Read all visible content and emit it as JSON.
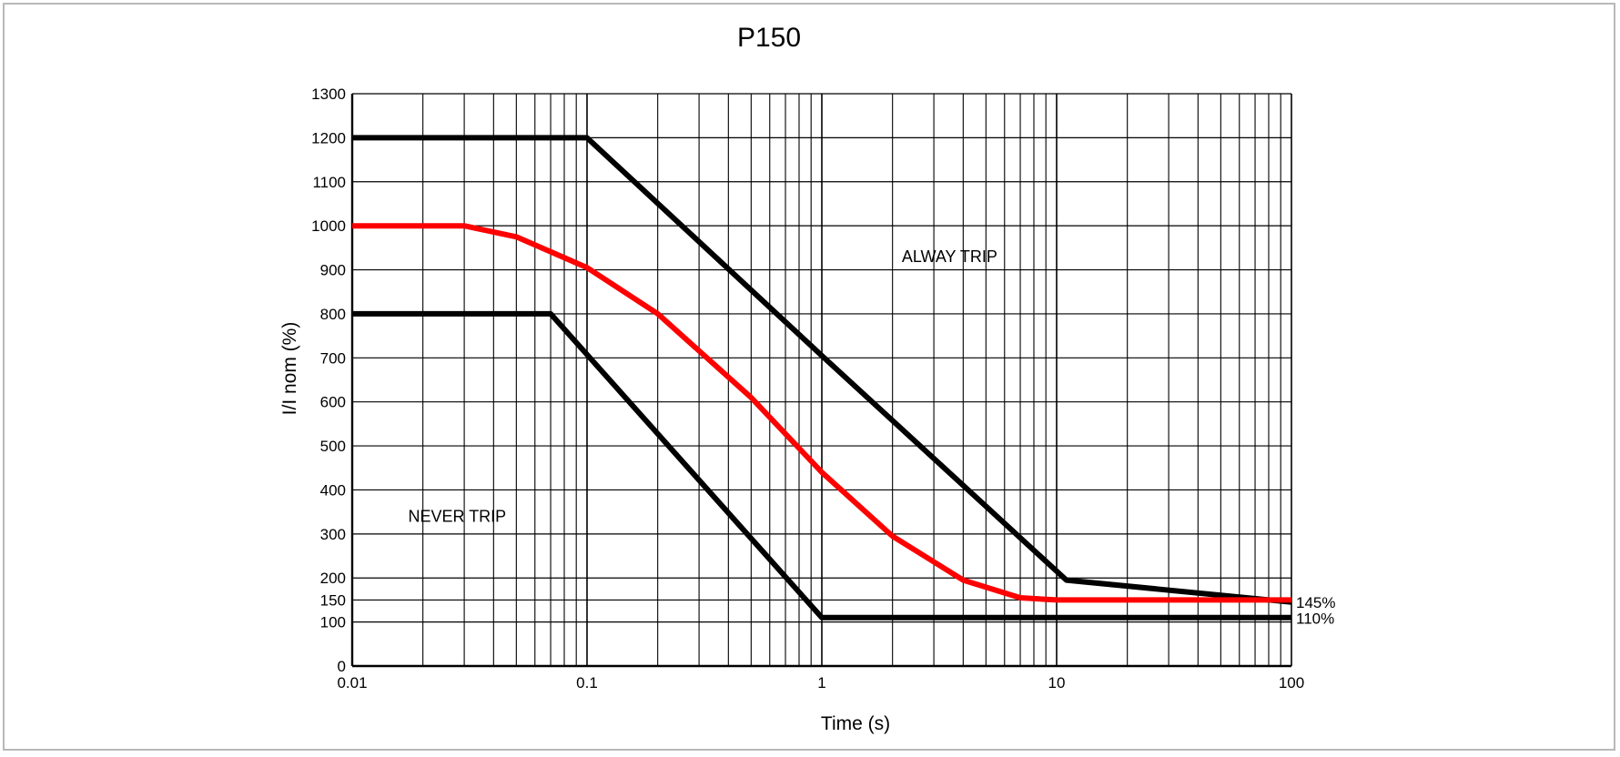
{
  "chart_data": {
    "type": "line",
    "title": "P150",
    "xlabel": "Time (s)",
    "ylabel": "I/I nom (%)",
    "x_scale": "log",
    "xlim": [
      0.01,
      100
    ],
    "ylim": [
      0,
      1300
    ],
    "grid": true,
    "x_ticks": [
      {
        "value": 0.01,
        "label": "0.01"
      },
      {
        "value": 0.1,
        "label": "0.1"
      },
      {
        "value": 1,
        "label": "1"
      },
      {
        "value": 10,
        "label": "10"
      },
      {
        "value": 100,
        "label": "100"
      }
    ],
    "y_ticks": [
      {
        "value": 0,
        "label": "0"
      },
      {
        "value": 100,
        "label": "100"
      },
      {
        "value": 150,
        "label": "150"
      },
      {
        "value": 200,
        "label": "200"
      },
      {
        "value": 300,
        "label": "300"
      },
      {
        "value": 400,
        "label": "400"
      },
      {
        "value": 500,
        "label": "500"
      },
      {
        "value": 600,
        "label": "600"
      },
      {
        "value": 700,
        "label": "700"
      },
      {
        "value": 800,
        "label": "800"
      },
      {
        "value": 900,
        "label": "900"
      },
      {
        "value": 1000,
        "label": "1000"
      },
      {
        "value": 1100,
        "label": "1100"
      },
      {
        "value": 1200,
        "label": "1200"
      },
      {
        "value": 1300,
        "label": "1300"
      }
    ],
    "series": [
      {
        "color": "#000000",
        "points": [
          [
            0.01,
            1200
          ],
          [
            0.1,
            1200
          ],
          [
            1,
            705
          ],
          [
            11,
            195
          ],
          [
            100,
            145
          ]
        ]
      },
      {
        "color": "#ff0000",
        "points": [
          [
            0.01,
            1000
          ],
          [
            0.03,
            1000
          ],
          [
            0.05,
            975
          ],
          [
            0.1,
            905
          ],
          [
            0.2,
            800
          ],
          [
            0.5,
            610
          ],
          [
            1,
            440
          ],
          [
            2,
            295
          ],
          [
            4,
            195
          ],
          [
            7,
            155
          ],
          [
            10,
            150
          ],
          [
            100,
            150
          ]
        ]
      },
      {
        "color": "#000000",
        "points": [
          [
            0.01,
            800
          ],
          [
            0.07,
            800
          ],
          [
            1,
            110
          ],
          [
            100,
            110
          ]
        ]
      }
    ],
    "annotations": [
      {
        "text": "ALWAY TRIP",
        "x": 3.5,
        "y": 930
      },
      {
        "text": "NEVER TRIP",
        "x": 0.028,
        "y": 340
      },
      {
        "text": "145%",
        "x": 100,
        "y": 145
      },
      {
        "text": "110%",
        "x": 100,
        "y": 108
      }
    ]
  }
}
